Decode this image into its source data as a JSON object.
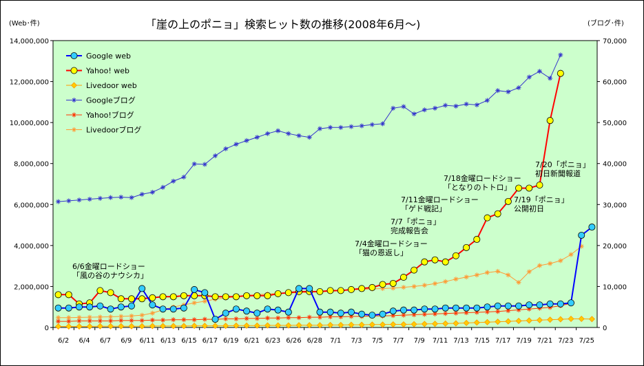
{
  "chart_data": {
    "type": "line",
    "title": "「崖の上のポニョ」検索ヒット数の推移(2008年6月〜)",
    "ylabel": "(Web･件)",
    "y2label": "(ブログ･件)",
    "ylim": [
      0,
      14000000
    ],
    "y2lim": [
      0,
      70000
    ],
    "grid": false,
    "legend_position": "top-left",
    "plot_background": "#ccffcc",
    "yticks": [
      "0",
      "2,000,000",
      "4,000,000",
      "6,000,000",
      "8,000,000",
      "10,000,000",
      "12,000,000",
      "14,000,000"
    ],
    "y2ticks": [
      "0",
      "10,000",
      "20,000",
      "30,000",
      "40,000",
      "50,000",
      "60,000",
      "70,000"
    ],
    "x_tick_labels": [
      "6/2",
      "6/4",
      "6/7",
      "6/9",
      "6/11",
      "6/13",
      "6/15",
      "6/17",
      "6/19",
      "6/21",
      "6/23",
      "6/26",
      "6/28",
      "7/1",
      "7/3",
      "7/5",
      "7/7",
      "7/9",
      "7/11",
      "7/13",
      "7/15",
      "7/17",
      "7/19",
      "7/21",
      "7/23",
      "7/25"
    ],
    "x_slot_count": 52,
    "series": [
      {
        "name": "Google web",
        "axis": "left",
        "color": "#0000ff",
        "marker": "circle",
        "marker_fill": "#33ccff",
        "values": [
          950000,
          950000,
          1000000,
          1000000,
          1050000,
          900000,
          1000000,
          1050000,
          1900000,
          1100000,
          900000,
          900000,
          950000,
          1850000,
          1700000,
          400000,
          700000,
          900000,
          800000,
          700000,
          900000,
          850000,
          750000,
          1900000,
          1900000,
          750000,
          750000,
          700000,
          750000,
          650000,
          600000,
          650000,
          800000,
          850000,
          850000,
          900000,
          900000,
          950000,
          950000,
          950000,
          950000,
          1000000,
          1050000,
          1050000,
          1050000,
          1100000,
          1100000,
          1150000,
          1150000,
          1200000,
          4500000,
          4900000
        ]
      },
      {
        "name": "Yahoo! web",
        "axis": "left",
        "color": "#ff0000",
        "marker": "circle",
        "marker_fill": "#ffff00",
        "values": [
          1600000,
          1600000,
          1150000,
          1200000,
          1800000,
          1700000,
          1400000,
          1400000,
          1400000,
          1450000,
          1500000,
          1500000,
          1550000,
          1550000,
          1550000,
          1500000,
          1500000,
          1500000,
          1550000,
          1550000,
          1550000,
          1650000,
          1700000,
          1750000,
          1750000,
          1750000,
          1800000,
          1800000,
          1850000,
          1900000,
          1950000,
          2100000,
          2150000,
          2450000,
          2800000,
          3200000,
          3300000,
          3200000,
          3500000,
          3900000,
          4300000,
          5350000,
          5550000,
          6150000,
          6800000,
          6800000,
          6950000,
          10100000,
          12400000
        ]
      },
      {
        "name": "Livedoor web",
        "axis": "left",
        "color": "#ff9900",
        "marker": "diamond",
        "marker_fill": "#ffcc00",
        "values": [
          50000,
          50000,
          50000,
          50000,
          60000,
          60000,
          60000,
          60000,
          60000,
          70000,
          70000,
          70000,
          70000,
          80000,
          80000,
          80000,
          80000,
          90000,
          90000,
          90000,
          100000,
          100000,
          100000,
          110000,
          110000,
          110000,
          120000,
          120000,
          130000,
          130000,
          140000,
          140000,
          150000,
          150000,
          160000,
          170000,
          180000,
          190000,
          200000,
          220000,
          240000,
          260000,
          280000,
          300000,
          320000,
          340000,
          360000,
          380000,
          400000,
          420000,
          420000,
          410000
        ]
      },
      {
        "name": "Googleブログ",
        "axis": "right",
        "color": "#3333cc",
        "marker": "asterisk",
        "values": [
          30700,
          30900,
          31100,
          31300,
          31500,
          31700,
          31800,
          31700,
          32500,
          33000,
          34200,
          35700,
          36700,
          39900,
          39800,
          41900,
          43600,
          44700,
          45600,
          46400,
          47300,
          48000,
          47300,
          46800,
          46400,
          48500,
          48800,
          48800,
          49000,
          49200,
          49500,
          49700,
          53500,
          53900,
          52100,
          53100,
          53500,
          54200,
          54000,
          54500,
          54300,
          55400,
          57800,
          57500,
          58500,
          61100,
          62500,
          60800,
          66500
        ]
      },
      {
        "name": "Yahoo!ブログ",
        "axis": "right",
        "color": "#ff3300",
        "marker": "asterisk",
        "values": [
          1500,
          1500,
          1600,
          1600,
          1600,
          1600,
          1700,
          1700,
          1700,
          1800,
          1800,
          1900,
          1900,
          1900,
          2000,
          2000,
          2100,
          2100,
          2200,
          2200,
          2300,
          2300,
          2400,
          2400,
          2500,
          2500,
          2600,
          2600,
          2700,
          2700,
          2800,
          2800,
          2900,
          3000,
          3100,
          3200,
          3300,
          3400,
          3500,
          3600,
          3700,
          3800,
          3900,
          4100,
          4300,
          4500,
          4700,
          4900,
          5300,
          5900
        ]
      },
      {
        "name": "Livedoorブログ",
        "axis": "right",
        "color": "#ff9933",
        "marker": "asterisk",
        "values": [
          2400,
          2400,
          2450,
          2500,
          2550,
          2600,
          2700,
          2800,
          3000,
          3500,
          4300,
          5000,
          5500,
          6000,
          6400,
          6900,
          7200,
          7500,
          7800,
          8000,
          8200,
          8300,
          8400,
          8500,
          8600,
          8700,
          8800,
          9000,
          9200,
          9300,
          9400,
          9500,
          9600,
          9800,
          10000,
          10300,
          10700,
          11200,
          11800,
          12300,
          12800,
          13400,
          13700,
          12800,
          11000,
          13600,
          15100,
          15600,
          16300,
          17800,
          19800
        ]
      }
    ],
    "annotations": [
      {
        "slot": 1,
        "text_lines": [
          "6/6金曜ロードショー",
          "「風の谷のナウシカ」"
        ]
      },
      {
        "slot": 33,
        "text_lines": [
          "7/4金曜ロードショー",
          "「猫の恩返し」"
        ]
      },
      {
        "slot": 36,
        "text_lines": [
          "7/7「ポニョ」",
          "完成報告会"
        ]
      },
      {
        "slot": 38,
        "text_lines": [
          "7/11金曜ロードショー",
          "「ゲド戦記」"
        ]
      },
      {
        "slot": 42,
        "text_lines": [
          "7/18金曜ロードショー",
          "「となりのトトロ」"
        ]
      },
      {
        "slot": 48,
        "text_lines": [
          "7/19「ポニョ」",
          "公開初日"
        ]
      },
      {
        "slot": 50,
        "text_lines": [
          "7/20「ポニョ」",
          "初日新聞報道"
        ]
      }
    ]
  }
}
